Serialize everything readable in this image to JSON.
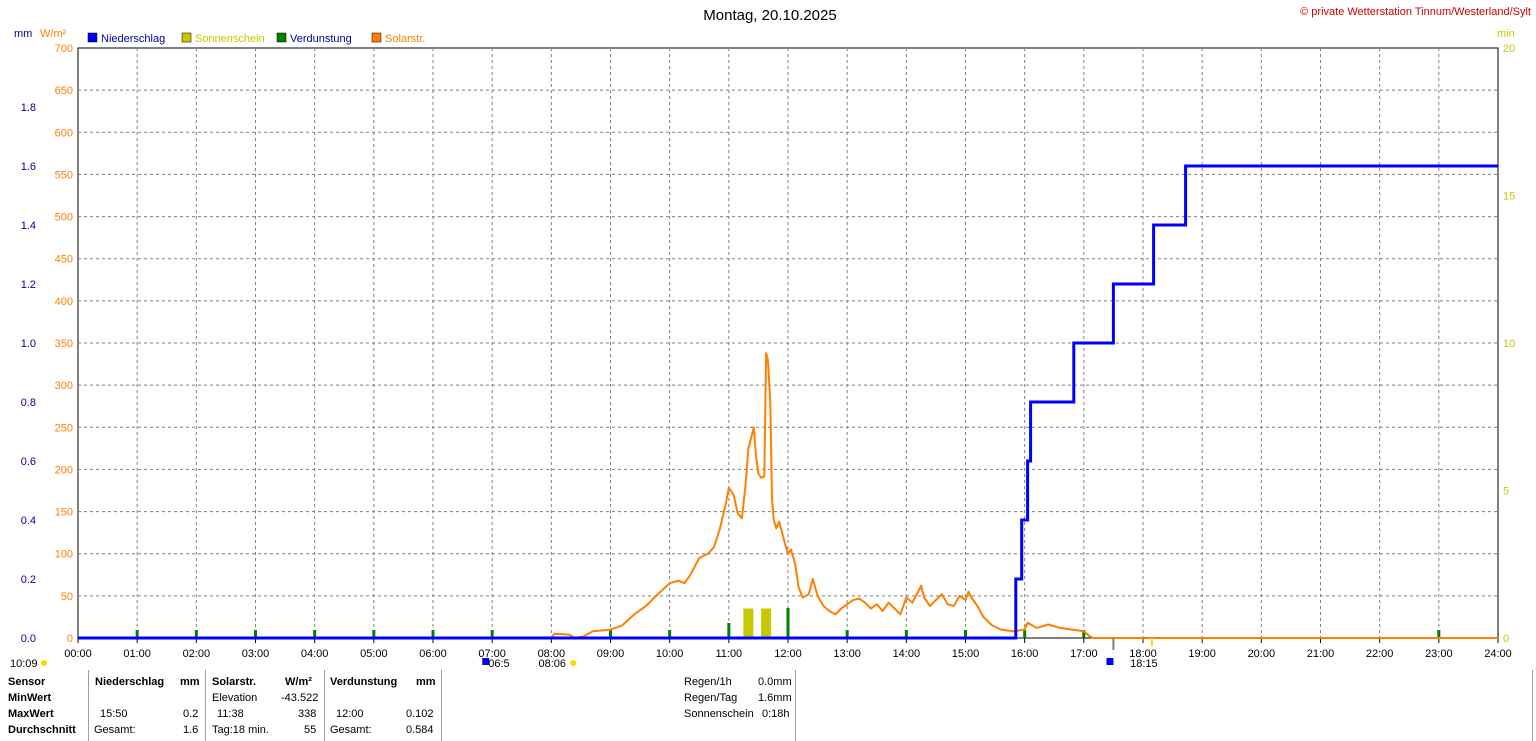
{
  "title": "Montag, 20.10.2025",
  "copyright": "© private Wetterstation Tinnum/Westerland/Sylt",
  "units": {
    "left_mm": "mm",
    "left_wm2": "W/m²",
    "right_min": "min"
  },
  "legend": [
    {
      "label": "Niederschlag",
      "color": "#0000ff",
      "text_color": "#0000a0"
    },
    {
      "label": "Sonnenschein",
      "color": "#c8c800",
      "text_color": "#c8c800"
    },
    {
      "label": "Verdunstung",
      "color": "#008000",
      "text_color": "#0000a0"
    },
    {
      "label": "Solarstr.",
      "color": "#ff8000",
      "text_color": "#ff8000"
    }
  ],
  "colors": {
    "rain": "#0000ff",
    "solar": "#ff8000",
    "sun": "#c8c800",
    "evap": "#008000",
    "grid": "#808080"
  },
  "markers": {
    "left_time": "10:09",
    "sunrise": "06:5",
    "sunrise_alt": "08:06",
    "sunset": "18:15"
  },
  "chart_data": {
    "type": "line",
    "title": "Montag, 20.10.2025",
    "x_ticks": [
      "00:00",
      "01:00",
      "02:00",
      "03:00",
      "04:00",
      "05:00",
      "06:00",
      "07:00",
      "08:00",
      "09:00",
      "10:00",
      "11:00",
      "12:00",
      "13:00",
      "14:00",
      "15:00",
      "16:00",
      "17:00",
      "18:00",
      "19:00",
      "20:00",
      "21:00",
      "22:00",
      "23:00",
      "24:00"
    ],
    "xlim_hours": [
      0,
      24
    ],
    "y_axes": {
      "mm": {
        "ticks": [
          "0.0",
          "0.2",
          "0.4",
          "0.6",
          "0.8",
          "1.0",
          "1.2",
          "1.4",
          "1.6",
          "1.8"
        ],
        "ylim": [
          0,
          2.0
        ]
      },
      "wm2": {
        "ticks": [
          "0",
          "50",
          "100",
          "150",
          "200",
          "250",
          "300",
          "350",
          "400",
          "450",
          "500",
          "550",
          "600",
          "650",
          "700"
        ],
        "ylim": [
          0,
          700
        ]
      },
      "min": {
        "ticks": [
          "0",
          "5",
          "10",
          "15",
          "20"
        ],
        "ylim": [
          0,
          20
        ]
      }
    },
    "grid": true,
    "series": [
      {
        "name": "Niederschlag",
        "unit": "mm",
        "step": true,
        "points": [
          [
            0,
            0
          ],
          [
            15.85,
            0
          ],
          [
            15.85,
            0.2
          ],
          [
            15.95,
            0.2
          ],
          [
            15.95,
            0.4
          ],
          [
            16.05,
            0.4
          ],
          [
            16.05,
            0.6
          ],
          [
            16.1,
            0.6
          ],
          [
            16.1,
            0.8
          ],
          [
            16.83,
            0.8
          ],
          [
            16.83,
            1.0
          ],
          [
            17.5,
            1.0
          ],
          [
            17.5,
            1.2
          ],
          [
            18.18,
            1.2
          ],
          [
            18.18,
            1.4
          ],
          [
            18.72,
            1.4
          ],
          [
            18.72,
            1.6
          ],
          [
            24,
            1.6
          ]
        ]
      },
      {
        "name": "Solarstr.",
        "unit": "W/m²",
        "points": [
          [
            0,
            0
          ],
          [
            8.0,
            0
          ],
          [
            8.05,
            5
          ],
          [
            8.3,
            4
          ],
          [
            8.4,
            0
          ],
          [
            8.55,
            2
          ],
          [
            8.7,
            8
          ],
          [
            9.0,
            10
          ],
          [
            9.2,
            15
          ],
          [
            9.4,
            28
          ],
          [
            9.6,
            38
          ],
          [
            9.8,
            52
          ],
          [
            10.0,
            65
          ],
          [
            10.15,
            68
          ],
          [
            10.25,
            65
          ],
          [
            10.35,
            75
          ],
          [
            10.5,
            95
          ],
          [
            10.65,
            100
          ],
          [
            10.75,
            108
          ],
          [
            10.85,
            130
          ],
          [
            10.95,
            160
          ],
          [
            11.0,
            178
          ],
          [
            11.08,
            170
          ],
          [
            11.15,
            148
          ],
          [
            11.22,
            142
          ],
          [
            11.28,
            180
          ],
          [
            11.33,
            225
          ],
          [
            11.38,
            238
          ],
          [
            11.42,
            250
          ],
          [
            11.46,
            215
          ],
          [
            11.5,
            195
          ],
          [
            11.55,
            190
          ],
          [
            11.6,
            192
          ],
          [
            11.63,
            338
          ],
          [
            11.66,
            330
          ],
          [
            11.7,
            280
          ],
          [
            11.73,
            165
          ],
          [
            11.76,
            140
          ],
          [
            11.8,
            130
          ],
          [
            11.85,
            138
          ],
          [
            11.9,
            125
          ],
          [
            11.95,
            112
          ],
          [
            12.0,
            100
          ],
          [
            12.05,
            105
          ],
          [
            12.12,
            88
          ],
          [
            12.18,
            60
          ],
          [
            12.25,
            48
          ],
          [
            12.35,
            52
          ],
          [
            12.42,
            70
          ],
          [
            12.5,
            50
          ],
          [
            12.6,
            38
          ],
          [
            12.7,
            32
          ],
          [
            12.8,
            28
          ],
          [
            12.9,
            35
          ],
          [
            13.0,
            40
          ],
          [
            13.1,
            45
          ],
          [
            13.2,
            47
          ],
          [
            13.3,
            42
          ],
          [
            13.4,
            35
          ],
          [
            13.5,
            40
          ],
          [
            13.6,
            32
          ],
          [
            13.7,
            42
          ],
          [
            13.8,
            35
          ],
          [
            13.9,
            28
          ],
          [
            14.0,
            48
          ],
          [
            14.1,
            42
          ],
          [
            14.2,
            55
          ],
          [
            14.25,
            62
          ],
          [
            14.3,
            48
          ],
          [
            14.4,
            38
          ],
          [
            14.5,
            45
          ],
          [
            14.6,
            52
          ],
          [
            14.7,
            40
          ],
          [
            14.8,
            38
          ],
          [
            14.9,
            50
          ],
          [
            15.0,
            45
          ],
          [
            15.05,
            55
          ],
          [
            15.1,
            48
          ],
          [
            15.2,
            38
          ],
          [
            15.3,
            25
          ],
          [
            15.45,
            15
          ],
          [
            15.6,
            10
          ],
          [
            15.8,
            8
          ],
          [
            16.0,
            10
          ],
          [
            16.05,
            18
          ],
          [
            16.2,
            12
          ],
          [
            16.4,
            16
          ],
          [
            16.6,
            12
          ],
          [
            16.8,
            10
          ],
          [
            17.0,
            8
          ],
          [
            17.1,
            2
          ],
          [
            17.15,
            0
          ],
          [
            24,
            0
          ]
        ]
      },
      {
        "name": "Sonnenschein",
        "unit": "min",
        "bars": [
          [
            11.33,
            1
          ],
          [
            11.63,
            1
          ]
        ]
      },
      {
        "name": "Verdunstung",
        "unit": "mm",
        "ticks_hours": [
          1,
          2,
          3,
          4,
          5,
          6,
          7,
          9,
          10,
          11,
          12,
          13,
          14,
          15,
          16,
          17,
          23
        ]
      }
    ]
  },
  "stats": {
    "headers": {
      "sensor": "Sensor",
      "rain": "Niederschlag",
      "rain_unit": "mm",
      "solar": "Solarstr.",
      "solar_unit": "W/m²",
      "evap": "Verdunstung",
      "evap_unit": "mm"
    },
    "rows": {
      "min_label": "MinWert",
      "max_label": "MaxWert",
      "avg_label": "Durchschnitt",
      "elevation_label": "Elevation",
      "elevation_value": "-43.522",
      "rain_max_time": "15:50",
      "rain_max_value": "0.2",
      "rain_total_label": "Gesamt:",
      "rain_total_value": "1.6",
      "solar_max_time": "11:38",
      "solar_max_value": "338",
      "solar_day_label": "Tag:18 min.",
      "solar_avg_value": "55",
      "evap_max_time": "12:00",
      "evap_max_value": "0.102",
      "evap_total_label": "Gesamt:",
      "evap_total_value": "0.584"
    },
    "summary": [
      {
        "label": "Regen/1h",
        "value": "0.0mm"
      },
      {
        "label": "Regen/Tag",
        "value": "1.6mm"
      },
      {
        "label": "Sonnenschein",
        "value": "0:18h"
      }
    ]
  }
}
